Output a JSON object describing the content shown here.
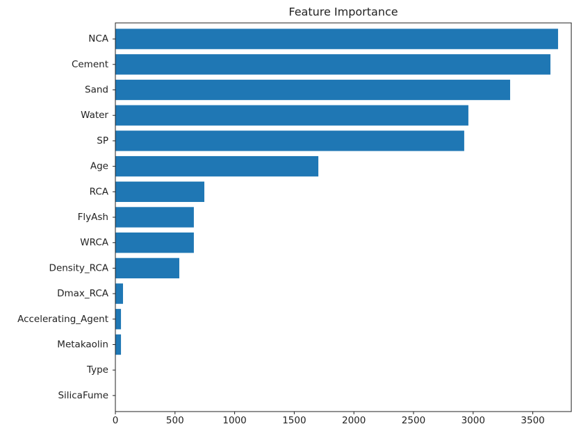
{
  "chart_data": {
    "type": "barh",
    "title": "Feature Importance",
    "categories": [
      "NCA",
      "Cement",
      "Sand",
      "Water",
      "SP",
      "Age",
      "RCA",
      "FlyAsh",
      "WRCA",
      "Density_RCA",
      "Dmax_RCA",
      "Accelerating_Agent",
      "Metakaolin",
      "Type",
      "SilicaFume"
    ],
    "values": [
      3712,
      3648,
      3310,
      2960,
      2925,
      1702,
      746,
      658,
      658,
      536,
      64,
      47,
      47,
      0,
      0
    ],
    "color": "#1f77b4",
    "xlim": [
      0,
      3823
    ],
    "xticks": [
      0,
      500,
      1000,
      1500,
      2000,
      2500,
      3000,
      3500
    ]
  }
}
